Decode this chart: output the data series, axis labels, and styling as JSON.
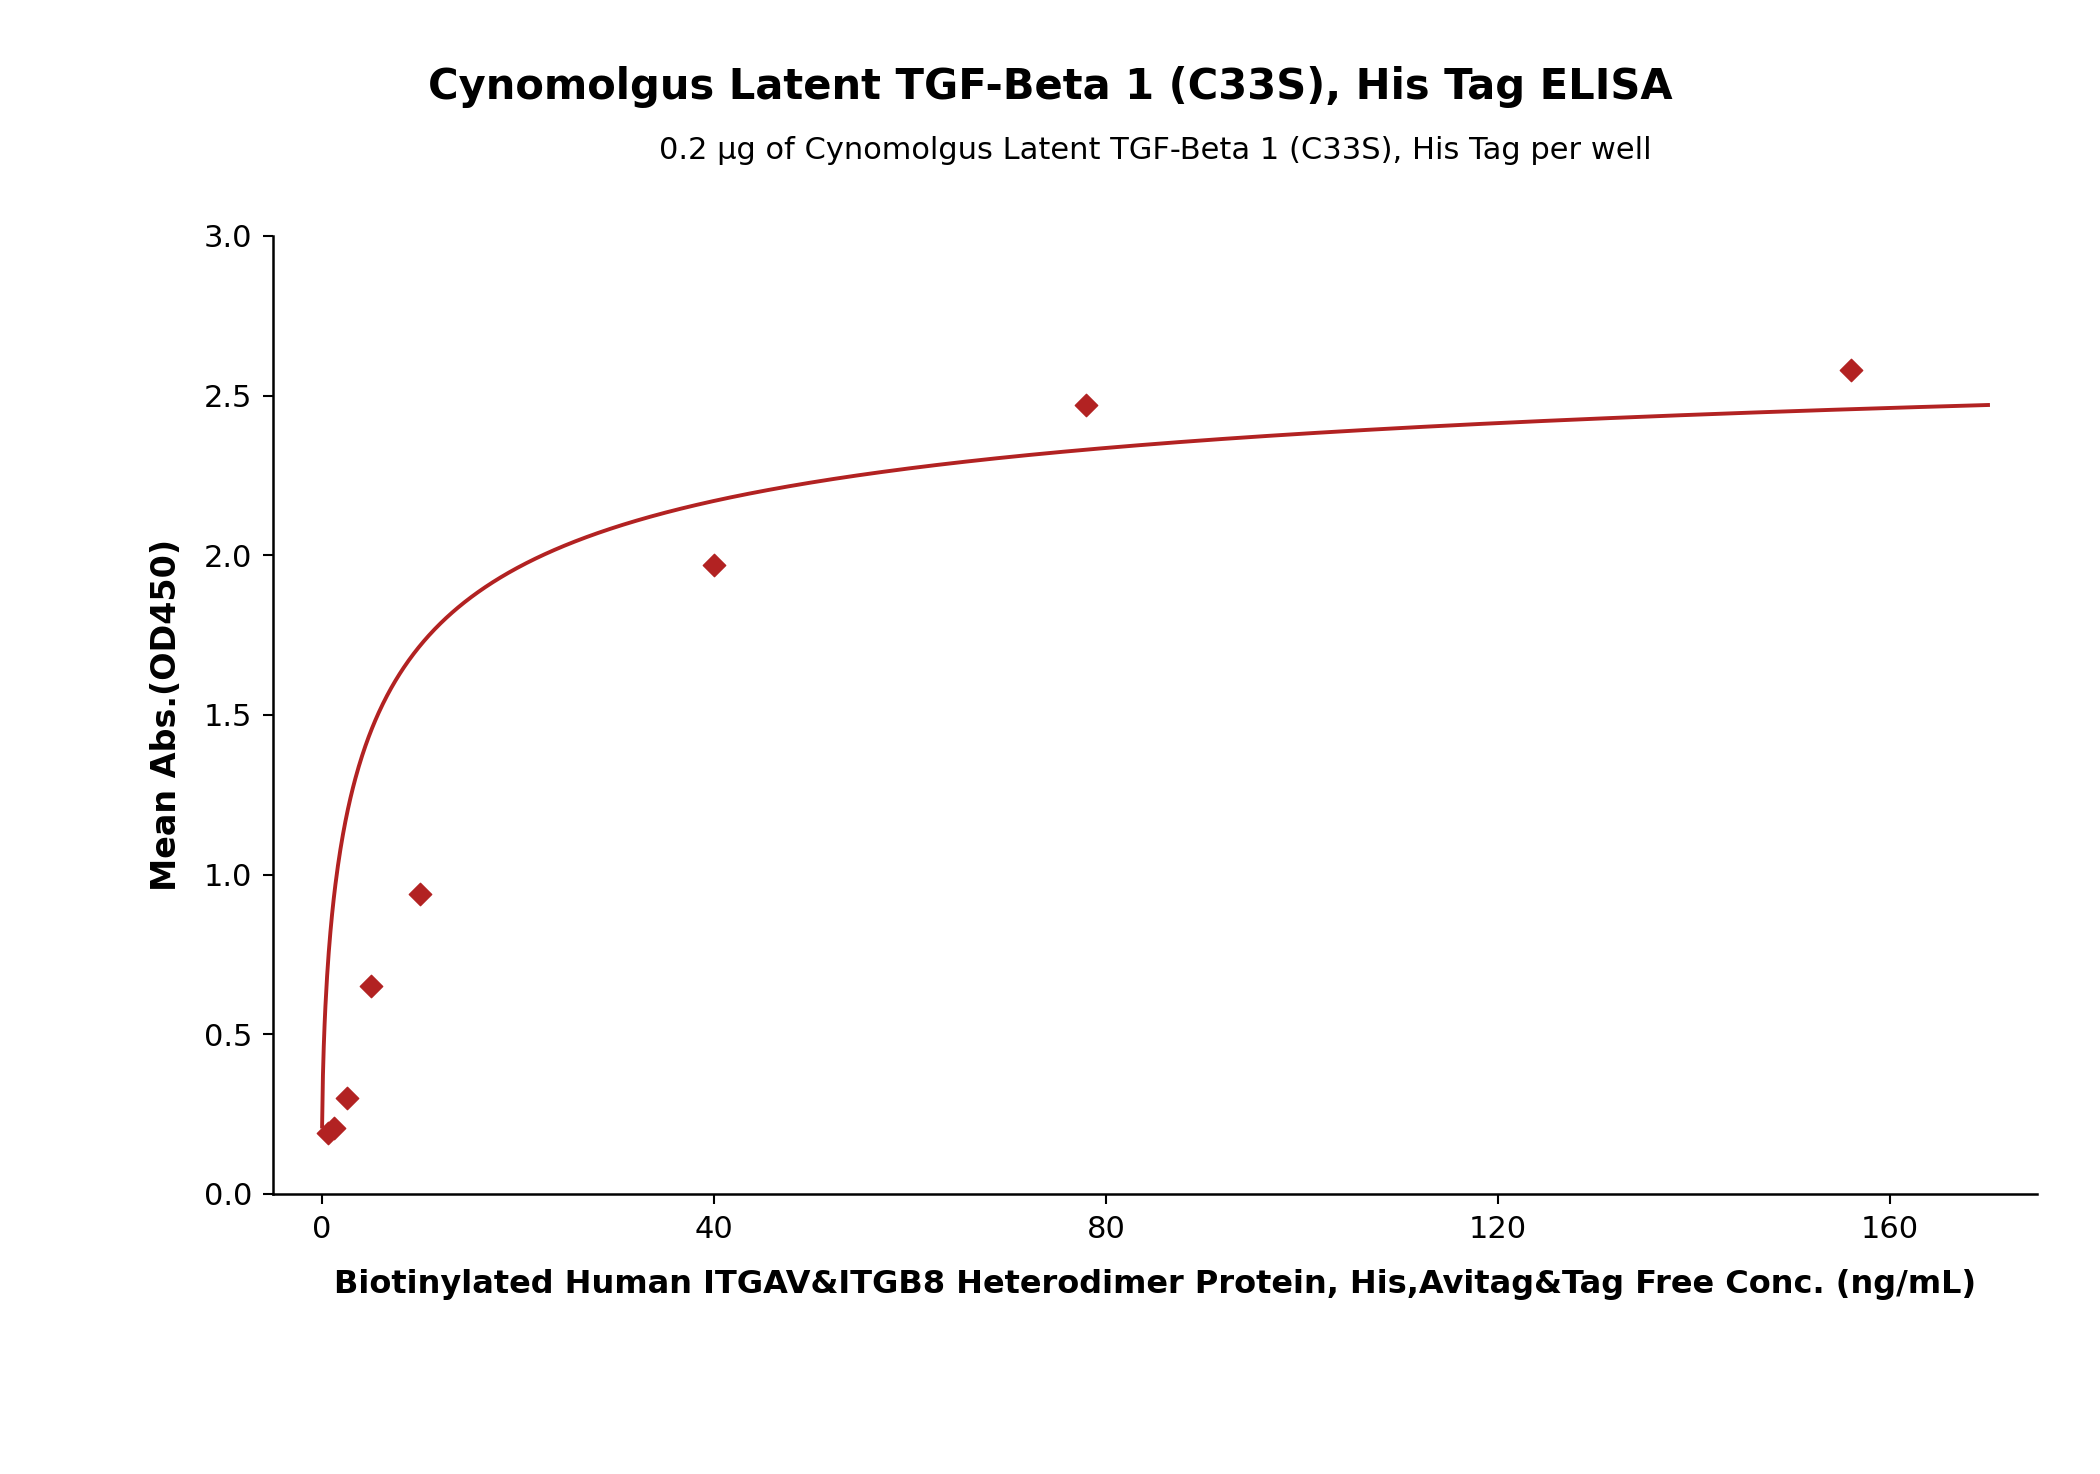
{
  "title": "Cynomolgus Latent TGF-Beta 1 (C33S), His Tag ELISA",
  "subtitle": "0.2 μg of Cynomolgus Latent TGF-Beta 1 (C33S), His Tag per well",
  "xlabel": "Biotinylated Human ITGAV&ITGB8 Heterodimer Protein, His,Avitag&Tag Free Conc. (ng/mL)",
  "ylabel": "Mean Abs.(OD450)",
  "x_data": [
    0.625,
    1.25,
    2.5,
    5.0,
    10.0,
    40.0,
    78.0,
    156.0
  ],
  "y_data": [
    0.19,
    0.205,
    0.3,
    0.65,
    0.94,
    1.97,
    2.47,
    2.58
  ],
  "xlim": [
    -5,
    175
  ],
  "ylim": [
    0.0,
    3.0
  ],
  "xticks": [
    0,
    40,
    80,
    120,
    160
  ],
  "yticks": [
    0.0,
    0.5,
    1.0,
    1.5,
    2.0,
    2.5,
    3.0
  ],
  "curve_color": "#b22222",
  "marker_color": "#b22222",
  "background_color": "#ffffff",
  "title_fontsize": 30,
  "subtitle_fontsize": 22,
  "xlabel_fontsize": 23,
  "ylabel_fontsize": 24,
  "tick_fontsize": 22,
  "marker_size": 130,
  "line_width": 2.8
}
